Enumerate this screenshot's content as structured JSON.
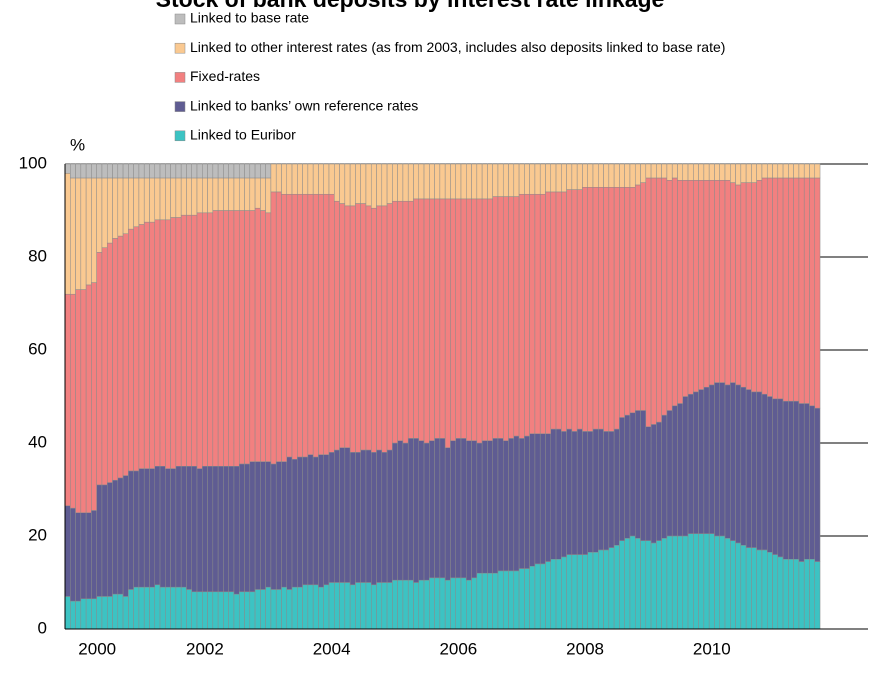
{
  "chart_data": {
    "type": "stacked_bar",
    "title": "Stock of bank deposits by interest rate linkage",
    "y_label": "%",
    "ylim": [
      0,
      100
    ],
    "yticks": [
      0,
      20,
      40,
      60,
      80,
      100
    ],
    "grid": true,
    "categories": [
      null,
      null,
      "2000",
      null,
      null,
      null,
      null,
      null,
      null,
      null,
      null,
      null,
      null,
      null,
      null,
      null,
      null,
      null,
      null,
      null,
      null,
      null,
      null,
      null,
      null,
      null,
      "2002",
      null,
      null,
      null,
      null,
      null,
      null,
      null,
      null,
      null,
      null,
      null,
      null,
      null,
      null,
      null,
      null,
      null,
      null,
      null,
      null,
      null,
      null,
      null,
      "2004",
      null,
      null,
      null,
      null,
      null,
      null,
      null,
      null,
      null,
      null,
      null,
      null,
      null,
      null,
      null,
      null,
      null,
      null,
      null,
      null,
      null,
      null,
      null,
      "2006",
      null,
      null,
      null,
      null,
      null,
      null,
      null,
      null,
      null,
      null,
      null,
      null,
      null,
      null,
      null,
      null,
      null,
      null,
      null,
      null,
      null,
      null,
      null,
      "2008",
      null,
      null,
      null,
      null,
      null,
      null,
      null,
      null,
      null,
      null,
      null,
      null,
      null,
      null,
      null,
      null,
      null,
      null,
      null,
      null,
      null,
      null,
      null,
      "2010",
      null,
      null,
      null,
      null,
      null,
      null,
      null,
      null,
      null,
      null,
      null,
      null,
      null,
      null,
      null,
      null,
      null,
      null,
      null,
      null
    ],
    "series": [
      {
        "name": "Linked to Euribor",
        "color": "#3cc3c3",
        "values": [
          7,
          6,
          6,
          6.5,
          6.5,
          6.5,
          7,
          7,
          7,
          7.5,
          7.5,
          7,
          8.5,
          9,
          9,
          9,
          9,
          9.5,
          9,
          9,
          9,
          9,
          9,
          8.5,
          8,
          8,
          8,
          8,
          8,
          8,
          8,
          8,
          7.5,
          8,
          8,
          8,
          8.5,
          8.5,
          9,
          8.5,
          8.5,
          9,
          8.5,
          9,
          9,
          9.5,
          9.5,
          9.5,
          9,
          9.5,
          10,
          10,
          10,
          10,
          9.5,
          10,
          10,
          10,
          9.5,
          10,
          10,
          10,
          10.5,
          10.5,
          10.5,
          10.5,
          10,
          10.5,
          10.5,
          11,
          11,
          11,
          10.5,
          11,
          11,
          11,
          10.5,
          11,
          12,
          12,
          12,
          12,
          12.5,
          12.5,
          12.5,
          12.5,
          13,
          13,
          13.5,
          14,
          14,
          14.5,
          15,
          15,
          15.5,
          16,
          16,
          16,
          16,
          16.5,
          16.5,
          17,
          17,
          17.5,
          18,
          19,
          19.5,
          20,
          19.5,
          19,
          19,
          18.5,
          19,
          19.5,
          20,
          20,
          20,
          20,
          20.5,
          20.5,
          20.5,
          20.5,
          20.5,
          20,
          20,
          19.5,
          19,
          18.5,
          18,
          17.5,
          17.5,
          17,
          17,
          16.5,
          16,
          15.5,
          15,
          15,
          15,
          14.5,
          15,
          15,
          14.5
        ]
      },
      {
        "name": "Linked to banks’ own reference rates",
        "color": "#5f5c92",
        "values": [
          19.5,
          20,
          19,
          18.5,
          18.5,
          19,
          24,
          24,
          24.5,
          24.5,
          25,
          26,
          25.5,
          25,
          25.5,
          25.5,
          25.5,
          25.5,
          26,
          25.5,
          25.5,
          26,
          26,
          26.5,
          27,
          26.5,
          27,
          27,
          27,
          27,
          27,
          27,
          27.5,
          27.5,
          27.5,
          28,
          27.5,
          27.5,
          27,
          27,
          27.5,
          27,
          28.5,
          27.5,
          28,
          27.5,
          28,
          27.5,
          28.5,
          28,
          28,
          28.5,
          29,
          29,
          28.5,
          28,
          28.5,
          28.5,
          28.5,
          28.5,
          28,
          28.5,
          29.5,
          30,
          29.5,
          30.5,
          31,
          30,
          29.5,
          29.5,
          30,
          30,
          28.5,
          29.5,
          30,
          30,
          30,
          29.5,
          28,
          28.5,
          28.5,
          29,
          28.5,
          28,
          28.5,
          29,
          28,
          28.5,
          28.5,
          28,
          28,
          27.5,
          28,
          28,
          27,
          27,
          26.5,
          27,
          26.5,
          26,
          26.5,
          26,
          25.5,
          25,
          25,
          26.5,
          26.5,
          26.5,
          27.5,
          28,
          24.5,
          25.5,
          25.5,
          26.5,
          27,
          28,
          28.5,
          30,
          30,
          30.5,
          31,
          31.5,
          32,
          33,
          33,
          33,
          34,
          34,
          34,
          34,
          33.5,
          34,
          33.5,
          33.5,
          33.5,
          34,
          34,
          34,
          34,
          34,
          33.5,
          33,
          33
        ]
      },
      {
        "name": "Fixed-rates",
        "color": "#f28080",
        "values": [
          45.5,
          46,
          48,
          48,
          49,
          49,
          50,
          51,
          51.5,
          52,
          52,
          52,
          52,
          52.5,
          52.5,
          53,
          53,
          53,
          53,
          53.5,
          54,
          53.5,
          54,
          54,
          54,
          55,
          54.5,
          54.5,
          55,
          55,
          55,
          55,
          55,
          54.5,
          54.5,
          54,
          54.5,
          54,
          53.5,
          58.5,
          58,
          57.5,
          56.5,
          57,
          56.5,
          56.5,
          56,
          56.5,
          56,
          56,
          55.5,
          53.5,
          52.5,
          52,
          53,
          53.5,
          53,
          52.5,
          52.5,
          52.5,
          53,
          53,
          52,
          51.5,
          52,
          51,
          51.5,
          52,
          52.5,
          52,
          51.5,
          51.5,
          53.5,
          52,
          51.5,
          51.5,
          52,
          52,
          52.5,
          52,
          52,
          52,
          52,
          52.5,
          52,
          51.5,
          52.5,
          52,
          51.5,
          51.5,
          51.5,
          52,
          51,
          51,
          51.5,
          51.5,
          52,
          51.5,
          52.5,
          52.5,
          52,
          52,
          52.5,
          52.5,
          52,
          49.5,
          49,
          48.5,
          48.5,
          49,
          53.5,
          53,
          52.5,
          51,
          49.5,
          49,
          48,
          46.5,
          46,
          45.5,
          45,
          44.5,
          44,
          43.5,
          43.5,
          44,
          43,
          43,
          44,
          44.5,
          45,
          45.5,
          46.5,
          47,
          47.5,
          47.5,
          48,
          48,
          48,
          48.5,
          48.5,
          49,
          49.5
        ]
      },
      {
        "name": "Linked to other interest rates (as from 2003, includes also deposits linked to base rate)",
        "color": "#fac991",
        "values": [
          26,
          25,
          24,
          24,
          23,
          22.5,
          16,
          15,
          14,
          13,
          12.5,
          12,
          11,
          10.5,
          10,
          9.5,
          9.5,
          9,
          9,
          9,
          8.5,
          8.5,
          8,
          8,
          8,
          7.5,
          7.5,
          7.5,
          7,
          7,
          7,
          7,
          7,
          7,
          7,
          7,
          6.5,
          7,
          7.5,
          6,
          6,
          6.5,
          6.5,
          6.5,
          6.5,
          6.5,
          6.5,
          6.5,
          6.5,
          6.5,
          6.5,
          8,
          8.5,
          9,
          9,
          8.5,
          8.5,
          9,
          9.5,
          9,
          9,
          8.5,
          8,
          8,
          8,
          8,
          7.5,
          7.5,
          7.5,
          7.5,
          7.5,
          7.5,
          7.5,
          7.5,
          7.5,
          7.5,
          7.5,
          7.5,
          7.5,
          7.5,
          7.5,
          7,
          7,
          7,
          7,
          7,
          6.5,
          6.5,
          6.5,
          6.5,
          6.5,
          6,
          6,
          6,
          6,
          5.5,
          5.5,
          5.5,
          5,
          5,
          5,
          5,
          5,
          5,
          5,
          5,
          5,
          5,
          4.5,
          4,
          3,
          3,
          3,
          3,
          3.5,
          3,
          3.5,
          3.5,
          3.5,
          3.5,
          3.5,
          3.5,
          3.5,
          3.5,
          3.5,
          3.5,
          4,
          4.5,
          4,
          4,
          4,
          3.5,
          3,
          3,
          3,
          3,
          3,
          3,
          3,
          3,
          3,
          3,
          3
        ]
      },
      {
        "name": "Linked to base rate",
        "color": "#bdbdbd",
        "values": [
          2,
          3,
          3,
          3,
          3,
          3,
          3,
          3,
          3,
          3,
          3,
          3,
          3,
          3,
          3,
          3,
          3,
          3,
          3,
          3,
          3,
          3,
          3,
          3,
          3,
          3,
          3,
          3,
          3,
          3,
          3,
          3,
          3,
          3,
          3,
          3,
          3,
          3,
          3,
          null,
          null,
          null,
          null,
          null,
          null,
          null,
          null,
          null,
          null,
          null,
          null,
          null,
          null,
          null,
          null,
          null,
          null,
          null,
          null,
          null,
          null,
          null,
          null,
          null,
          null,
          null,
          null,
          null,
          null,
          null,
          null,
          null,
          null,
          null,
          null,
          null,
          null,
          null,
          null,
          null,
          null,
          null,
          null,
          null,
          null,
          null,
          null,
          null,
          null,
          null,
          null,
          null,
          null,
          null,
          null,
          null,
          null,
          null,
          null,
          null,
          null,
          null,
          null,
          null,
          null,
          null,
          null,
          null,
          null,
          null,
          null,
          null,
          null,
          null,
          null,
          null,
          null,
          null,
          null,
          null,
          null,
          null,
          null,
          null,
          null,
          null,
          null,
          null,
          null,
          null,
          null,
          null,
          null,
          null,
          null,
          null,
          null,
          null,
          null,
          null,
          null,
          null,
          null
        ]
      }
    ]
  }
}
